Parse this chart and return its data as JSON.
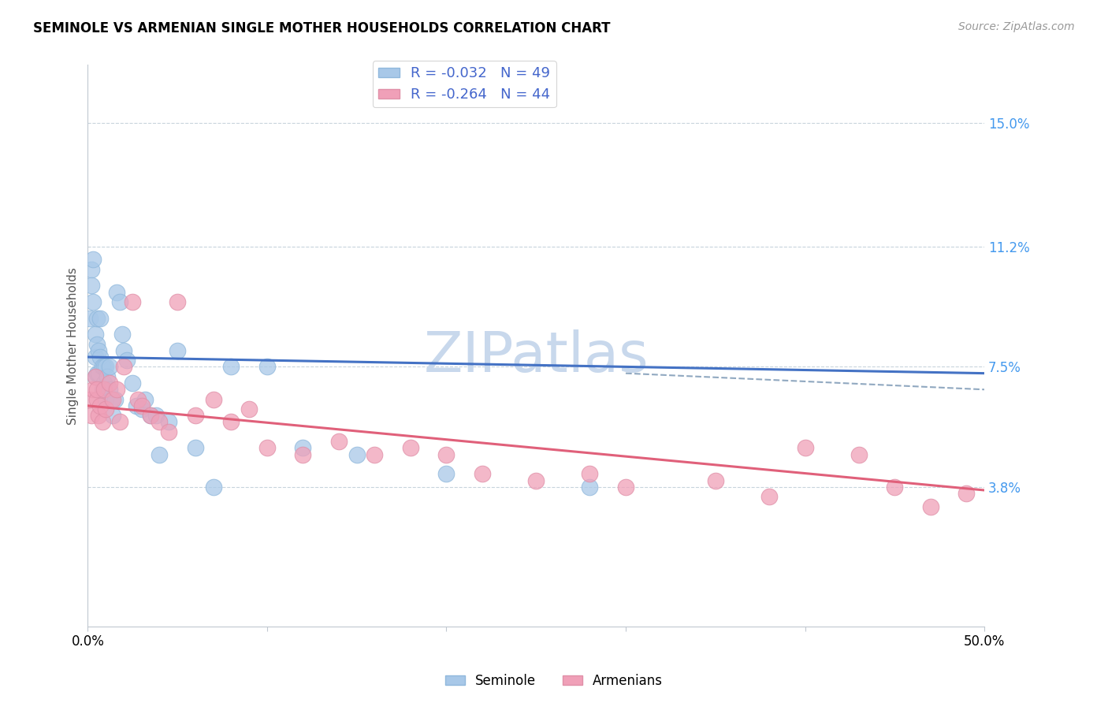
{
  "title": "SEMINOLE VS ARMENIAN SINGLE MOTHER HOUSEHOLDS CORRELATION CHART",
  "source": "Source: ZipAtlas.com",
  "ylabel": "Single Mother Households",
  "ytick_labels": [
    "3.8%",
    "7.5%",
    "11.2%",
    "15.0%"
  ],
  "ytick_values": [
    0.038,
    0.075,
    0.112,
    0.15
  ],
  "xlim": [
    0.0,
    0.5
  ],
  "ylim": [
    -0.005,
    0.168
  ],
  "legend_blue_label": "R = -0.032   N = 49",
  "legend_pink_label": "R = -0.264   N = 44",
  "blue_color": "#A8C8E8",
  "pink_color": "#F0A0B8",
  "trend_blue_color": "#4472C4",
  "trend_pink_color": "#E0607A",
  "watermark": "ZIPatlas",
  "watermark_color": "#C8D8EC",
  "seminole_x": [
    0.001,
    0.002,
    0.002,
    0.003,
    0.003,
    0.004,
    0.004,
    0.004,
    0.005,
    0.005,
    0.005,
    0.006,
    0.006,
    0.007,
    0.007,
    0.008,
    0.008,
    0.009,
    0.009,
    0.01,
    0.01,
    0.011,
    0.012,
    0.012,
    0.013,
    0.014,
    0.015,
    0.016,
    0.018,
    0.019,
    0.02,
    0.022,
    0.025,
    0.027,
    0.03,
    0.032,
    0.035,
    0.038,
    0.04,
    0.045,
    0.05,
    0.06,
    0.07,
    0.08,
    0.1,
    0.12,
    0.15,
    0.2,
    0.28
  ],
  "seminole_y": [
    0.09,
    0.105,
    0.1,
    0.108,
    0.095,
    0.085,
    0.078,
    0.072,
    0.09,
    0.082,
    0.073,
    0.08,
    0.073,
    0.09,
    0.078,
    0.075,
    0.068,
    0.075,
    0.07,
    0.075,
    0.065,
    0.072,
    0.068,
    0.075,
    0.065,
    0.06,
    0.065,
    0.098,
    0.095,
    0.085,
    0.08,
    0.077,
    0.07,
    0.063,
    0.062,
    0.065,
    0.06,
    0.06,
    0.048,
    0.058,
    0.08,
    0.05,
    0.038,
    0.075,
    0.075,
    0.05,
    0.048,
    0.042,
    0.038
  ],
  "armenian_x": [
    0.001,
    0.002,
    0.003,
    0.004,
    0.005,
    0.005,
    0.006,
    0.007,
    0.008,
    0.009,
    0.01,
    0.012,
    0.014,
    0.016,
    0.018,
    0.02,
    0.025,
    0.028,
    0.03,
    0.035,
    0.04,
    0.045,
    0.05,
    0.06,
    0.07,
    0.08,
    0.09,
    0.1,
    0.12,
    0.14,
    0.16,
    0.18,
    0.2,
    0.22,
    0.25,
    0.28,
    0.3,
    0.35,
    0.38,
    0.4,
    0.43,
    0.45,
    0.47,
    0.49
  ],
  "armenian_y": [
    0.065,
    0.06,
    0.068,
    0.072,
    0.065,
    0.068,
    0.06,
    0.063,
    0.058,
    0.068,
    0.062,
    0.07,
    0.065,
    0.068,
    0.058,
    0.075,
    0.095,
    0.065,
    0.063,
    0.06,
    0.058,
    0.055,
    0.095,
    0.06,
    0.065,
    0.058,
    0.062,
    0.05,
    0.048,
    0.052,
    0.048,
    0.05,
    0.048,
    0.042,
    0.04,
    0.042,
    0.038,
    0.04,
    0.035,
    0.05,
    0.048,
    0.038,
    0.032,
    0.036
  ],
  "blue_line_x": [
    0.0,
    0.5
  ],
  "blue_line_y": [
    0.078,
    0.073
  ],
  "pink_line_x": [
    0.0,
    0.5
  ],
  "pink_line_y": [
    0.063,
    0.037
  ],
  "dash_line_x": [
    0.3,
    0.5
  ],
  "dash_line_y": [
    0.073,
    0.068
  ]
}
